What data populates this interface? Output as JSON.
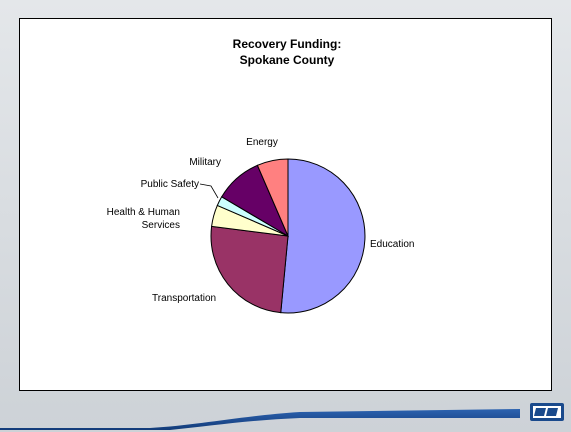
{
  "chart_data": {
    "type": "pie",
    "title": [
      "Recovery Funding:",
      "Spokane County"
    ],
    "start_angle_deg": 0,
    "direction": "clockwise",
    "slices": [
      {
        "name": "Education",
        "label": [
          "Education"
        ],
        "value": 51.5,
        "color": "#9999ff"
      },
      {
        "name": "Transportation",
        "label": [
          "Transportation"
        ],
        "value": 25.5,
        "color": "#993366"
      },
      {
        "name": "Health & Human Services",
        "label": [
          "Health & Human",
          "Services"
        ],
        "value": 4.5,
        "color": "#ffffcc"
      },
      {
        "name": "Public Safety",
        "label": [
          "Public Safety"
        ],
        "value": 2.0,
        "color": "#ccffff"
      },
      {
        "name": "Military",
        "label": [
          "Military"
        ],
        "value": 10.0,
        "color": "#660066"
      },
      {
        "name": "Energy",
        "label": [
          "Energy"
        ],
        "value": 6.5,
        "color": "#ff8080"
      }
    ],
    "legend": "none",
    "slice_outline_color": "#000000"
  },
  "colors": {
    "background": "#d4d8dc",
    "plot_area": "#ffffff",
    "footer_bar": "#1a4a8c",
    "footer_accent": "#0f2f66"
  },
  "footer": {
    "logo_icon": "agency-logo-icon"
  }
}
